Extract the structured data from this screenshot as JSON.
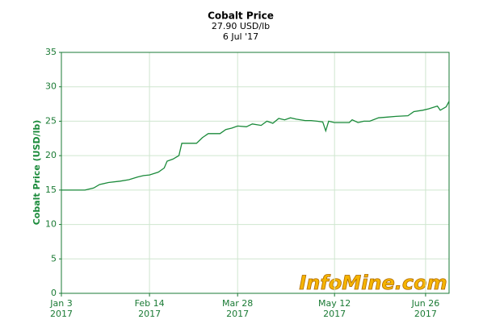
{
  "chart_data": {
    "type": "line",
    "title": "Cobalt Price",
    "subtitle": "27.90 USD/lb",
    "date_label": "6 Jul '17",
    "y_axis_label": "Cobalt Price (USD/lb)",
    "watermark": "InfoMine.com",
    "color": "#1a8a3a",
    "grid": true,
    "x": [
      "2017-01-03",
      "2017-01-13",
      "2017-01-18",
      "2017-01-20",
      "2017-01-25",
      "2017-01-31",
      "2017-02-03",
      "2017-02-08",
      "2017-02-10",
      "2017-02-14",
      "2017-02-17",
      "2017-02-21",
      "2017-02-22",
      "2017-02-24",
      "2017-02-28",
      "2017-03-01",
      "2017-03-08",
      "2017-03-10",
      "2017-03-14",
      "2017-03-20",
      "2017-03-22",
      "2017-03-24",
      "2017-03-28",
      "2017-03-31",
      "2017-04-04",
      "2017-04-07",
      "2017-04-11",
      "2017-04-13",
      "2017-04-17",
      "2017-04-19",
      "2017-04-21",
      "2017-04-25",
      "2017-04-28",
      "2017-05-02",
      "2017-05-04",
      "2017-05-08",
      "2017-05-09",
      "2017-05-10",
      "2017-05-12",
      "2017-05-16",
      "2017-05-19",
      "2017-05-22",
      "2017-05-24",
      "2017-05-26",
      "2017-05-30",
      "2017-06-02",
      "2017-06-07",
      "2017-06-12",
      "2017-06-16",
      "2017-06-20",
      "2017-06-23",
      "2017-06-27",
      "2017-06-30",
      "2017-07-03",
      "2017-07-05",
      "2017-07-06"
    ],
    "values": [
      15.0,
      15.0,
      15.3,
      15.8,
      16.1,
      16.3,
      16.5,
      16.9,
      17.1,
      17.2,
      17.6,
      18.2,
      19.2,
      19.5,
      20.0,
      21.8,
      21.8,
      22.6,
      23.2,
      23.2,
      23.8,
      24.0,
      24.3,
      24.2,
      24.6,
      24.4,
      25.0,
      24.7,
      25.4,
      25.2,
      25.5,
      25.3,
      25.1,
      25.1,
      25.0,
      24.9,
      23.6,
      25.0,
      24.8,
      24.8,
      24.8,
      25.2,
      24.8,
      25.0,
      25.0,
      25.5,
      25.6,
      25.7,
      25.8,
      26.4,
      26.6,
      26.8,
      27.2,
      26.6,
      27.1,
      27.9
    ],
    "xlim": [
      "2017-01-03",
      "2017-07-06"
    ],
    "xticks": [
      {
        "value": "2017-01-03",
        "label": [
          "Jan 3",
          "2017"
        ]
      },
      {
        "value": "2017-02-14",
        "label": [
          "Feb 14",
          "2017"
        ]
      },
      {
        "value": "2017-03-28",
        "label": [
          "Mar 28",
          "2017"
        ]
      },
      {
        "value": "2017-05-12",
        "label": [
          "May 12",
          "2017"
        ]
      },
      {
        "value": "2017-06-26",
        "label": [
          "Jun 26",
          "2017"
        ]
      }
    ],
    "ylim": [
      0,
      35
    ],
    "yticks": [
      0,
      5,
      10,
      15,
      20,
      25,
      30,
      35
    ]
  }
}
